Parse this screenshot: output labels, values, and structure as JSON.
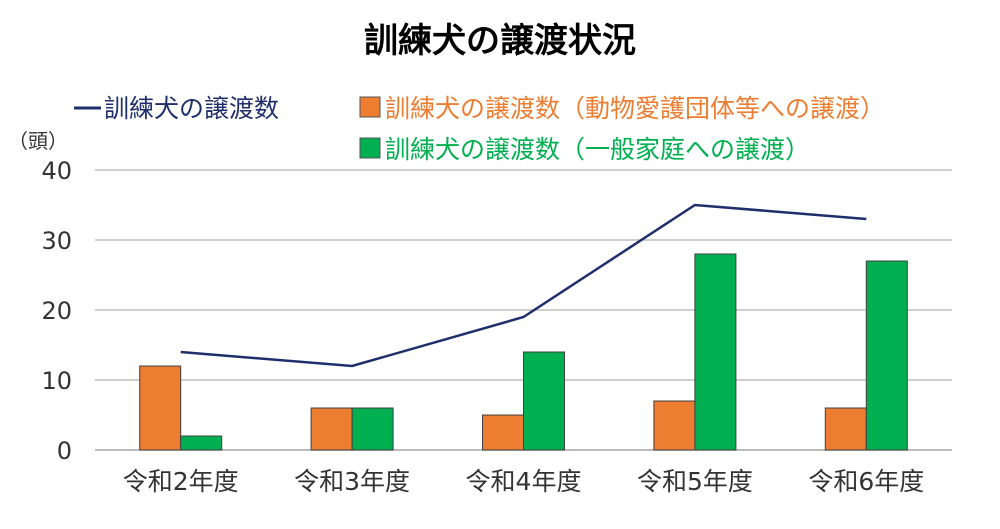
{
  "chart_data": {
    "type": "bar",
    "title": "訓練犬の譲渡状況",
    "unit_label": "（頭）",
    "categories": [
      "令和2年度",
      "令和3年度",
      "令和4年度",
      "令和5年度",
      "令和6年度"
    ],
    "ylim": [
      0,
      40
    ],
    "yticks": [
      "0",
      "10",
      "20",
      "30",
      "40"
    ],
    "ytick_values": [
      0,
      10,
      20,
      30,
      40
    ],
    "grid": true,
    "legend_position": "top",
    "series": [
      {
        "name": "訓練犬の譲渡数（動物愛護団体等への譲渡）",
        "kind": "bar",
        "color": "#ED7D31",
        "values": [
          12,
          6,
          5,
          7,
          6
        ]
      },
      {
        "name": "訓練犬の譲渡数（一般家庭への譲渡）",
        "kind": "bar",
        "color": "#00B050",
        "values": [
          2,
          6,
          14,
          28,
          27
        ]
      },
      {
        "name": "訓練犬の譲渡数",
        "kind": "line",
        "color": "#1F2F6B",
        "values": [
          14,
          12,
          19,
          35,
          33
        ]
      }
    ]
  }
}
